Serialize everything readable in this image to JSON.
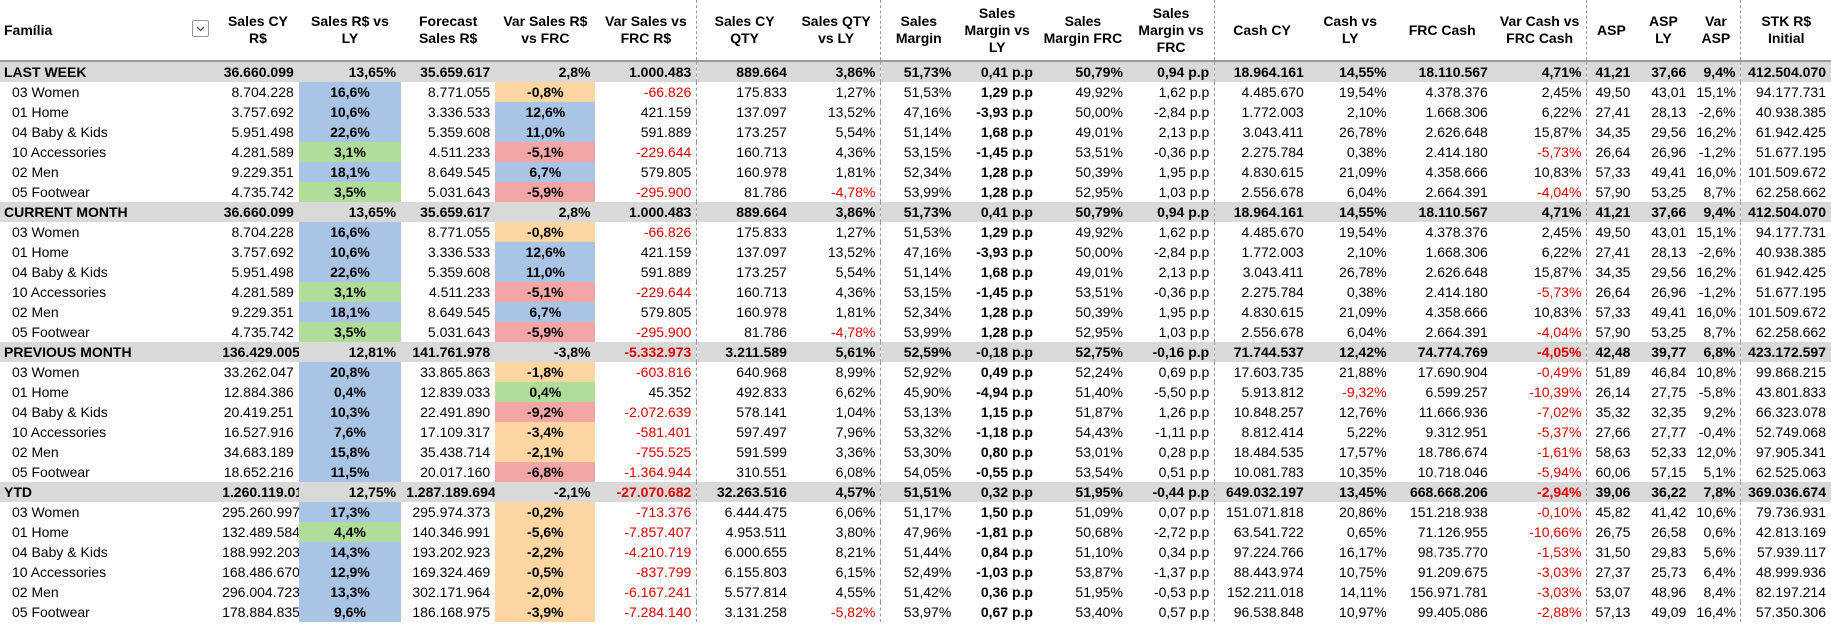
{
  "headers": {
    "family": "Família",
    "sales_cy": "Sales CY R$",
    "sales_vs_ly": "Sales R$ vs LY",
    "forecast": "Forecast Sales R$",
    "var_sales_frc": "Var Sales R$ vs FRC",
    "var_sales_frc_rs": "Var Sales vs FRC R$",
    "sales_cy_qty": "Sales CY QTY",
    "sales_qty_vs_ly": "Sales QTY vs LY",
    "sales_margin": "Sales Margin",
    "sales_margin_vs_ly": "Sales Margin vs LY",
    "sales_margin_frc": "Sales Margin FRC",
    "sales_margin_vs_frc": "Sales Margin vs FRC",
    "cash_cy": "Cash CY",
    "cash_vs_ly": "Cash vs LY",
    "frc_cash": "FRC Cash",
    "var_cash_frc": "Var Cash vs FRC Cash",
    "asp": "ASP",
    "asp_ly": "ASP LY",
    "var_asp": "Var ASP",
    "stk_initial": "STK R$ Initial"
  },
  "colors": {
    "blue": "#a9c4e4",
    "green": "#b0dd9a",
    "orange": "#fdd6a2",
    "red": "#f2a6a6",
    "group_bg": "#d9d9d9",
    "negative_text": "#e00000"
  },
  "filter_icon": "chevron-down-icon",
  "rows": [
    {
      "type": "group",
      "c": [
        "LAST WEEK",
        "36.660.099",
        "13,65%",
        "35.659.617",
        "2,8%",
        "1.000.483",
        "889.664",
        "3,86%",
        "51,73%",
        "0,41 p.p",
        "50,79%",
        "0,94 p.p",
        "18.964.161",
        "14,55%",
        "18.110.567",
        "4,71%",
        "41,21",
        "37,66",
        "9,4%",
        "412.504.070"
      ]
    },
    {
      "type": "sub",
      "c": [
        "03 Women",
        "8.704.228",
        "16,6%",
        "8.771.055",
        "-0,8%",
        "-66.826",
        "175.833",
        "1,27%",
        "51,53%",
        "1,29 p.p",
        "49,92%",
        "1,62 p.p",
        "4.485.670",
        "19,54%",
        "4.378.376",
        "2,45%",
        "49,50",
        "43,01",
        "15,1%",
        "94.177.731"
      ],
      "s": "blue",
      "f": "orange"
    },
    {
      "type": "sub",
      "c": [
        "01 Home",
        "3.757.692",
        "10,6%",
        "3.336.533",
        "12,6%",
        "421.159",
        "137.097",
        "13,52%",
        "47,16%",
        "-3,93 p.p",
        "50,00%",
        "-2,84 p.p",
        "1.772.003",
        "2,10%",
        "1.668.306",
        "6,22%",
        "27,41",
        "28,13",
        "-2,6%",
        "40.938.385"
      ],
      "s": "blue",
      "f": "blue"
    },
    {
      "type": "sub",
      "c": [
        "04 Baby & Kids",
        "5.951.498",
        "22,6%",
        "5.359.608",
        "11,0%",
        "591.889",
        "173.257",
        "5,54%",
        "51,14%",
        "1,68 p.p",
        "49,01%",
        "2,13 p.p",
        "3.043.411",
        "26,78%",
        "2.626.648",
        "15,87%",
        "34,35",
        "29,56",
        "16,2%",
        "61.942.425"
      ],
      "s": "blue",
      "f": "blue"
    },
    {
      "type": "sub",
      "c": [
        "10 Accessories",
        "4.281.589",
        "3,1%",
        "4.511.233",
        "-5,1%",
        "-229.644",
        "160.713",
        "4,36%",
        "53,15%",
        "-1,45 p.p",
        "53,51%",
        "-0,36 p.p",
        "2.275.784",
        "0,38%",
        "2.414.180",
        "-5,73%",
        "26,64",
        "26,96",
        "-1,2%",
        "51.677.195"
      ],
      "s": "green",
      "f": "red"
    },
    {
      "type": "sub",
      "c": [
        "02 Men",
        "9.229.351",
        "18,1%",
        "8.649.545",
        "6,7%",
        "579.805",
        "160.978",
        "1,81%",
        "52,34%",
        "1,28 p.p",
        "50,39%",
        "1,95 p.p",
        "4.830.615",
        "21,09%",
        "4.358.666",
        "10,83%",
        "57,33",
        "49,41",
        "16,0%",
        "101.509.672"
      ],
      "s": "blue",
      "f": "blue"
    },
    {
      "type": "sub",
      "c": [
        "05 Footwear",
        "4.735.742",
        "3,5%",
        "5.031.643",
        "-5,9%",
        "-295.900",
        "81.786",
        "-4,78%",
        "53,99%",
        "1,28 p.p",
        "52,95%",
        "1,03 p.p",
        "2.556.678",
        "6,04%",
        "2.664.391",
        "-4,04%",
        "57,90",
        "53,25",
        "8,7%",
        "62.258.662"
      ],
      "s": "green",
      "f": "red"
    },
    {
      "type": "group",
      "c": [
        "CURRENT MONTH",
        "36.660.099",
        "13,65%",
        "35.659.617",
        "2,8%",
        "1.000.483",
        "889.664",
        "3,86%",
        "51,73%",
        "0,41 p.p",
        "50,79%",
        "0,94 p.p",
        "18.964.161",
        "14,55%",
        "18.110.567",
        "4,71%",
        "41,21",
        "37,66",
        "9,4%",
        "412.504.070"
      ]
    },
    {
      "type": "sub",
      "c": [
        "03 Women",
        "8.704.228",
        "16,6%",
        "8.771.055",
        "-0,8%",
        "-66.826",
        "175.833",
        "1,27%",
        "51,53%",
        "1,29 p.p",
        "49,92%",
        "1,62 p.p",
        "4.485.670",
        "19,54%",
        "4.378.376",
        "2,45%",
        "49,50",
        "43,01",
        "15,1%",
        "94.177.731"
      ],
      "s": "blue",
      "f": "orange"
    },
    {
      "type": "sub",
      "c": [
        "01 Home",
        "3.757.692",
        "10,6%",
        "3.336.533",
        "12,6%",
        "421.159",
        "137.097",
        "13,52%",
        "47,16%",
        "-3,93 p.p",
        "50,00%",
        "-2,84 p.p",
        "1.772.003",
        "2,10%",
        "1.668.306",
        "6,22%",
        "27,41",
        "28,13",
        "-2,6%",
        "40.938.385"
      ],
      "s": "blue",
      "f": "blue"
    },
    {
      "type": "sub",
      "c": [
        "04 Baby & Kids",
        "5.951.498",
        "22,6%",
        "5.359.608",
        "11,0%",
        "591.889",
        "173.257",
        "5,54%",
        "51,14%",
        "1,68 p.p",
        "49,01%",
        "2,13 p.p",
        "3.043.411",
        "26,78%",
        "2.626.648",
        "15,87%",
        "34,35",
        "29,56",
        "16,2%",
        "61.942.425"
      ],
      "s": "blue",
      "f": "blue"
    },
    {
      "type": "sub",
      "c": [
        "10 Accessories",
        "4.281.589",
        "3,1%",
        "4.511.233",
        "-5,1%",
        "-229.644",
        "160.713",
        "4,36%",
        "53,15%",
        "-1,45 p.p",
        "53,51%",
        "-0,36 p.p",
        "2.275.784",
        "0,38%",
        "2.414.180",
        "-5,73%",
        "26,64",
        "26,96",
        "-1,2%",
        "51.677.195"
      ],
      "s": "green",
      "f": "red"
    },
    {
      "type": "sub",
      "c": [
        "02 Men",
        "9.229.351",
        "18,1%",
        "8.649.545",
        "6,7%",
        "579.805",
        "160.978",
        "1,81%",
        "52,34%",
        "1,28 p.p",
        "50,39%",
        "1,95 p.p",
        "4.830.615",
        "21,09%",
        "4.358.666",
        "10,83%",
        "57,33",
        "49,41",
        "16,0%",
        "101.509.672"
      ],
      "s": "blue",
      "f": "blue"
    },
    {
      "type": "sub",
      "c": [
        "05 Footwear",
        "4.735.742",
        "3,5%",
        "5.031.643",
        "-5,9%",
        "-295.900",
        "81.786",
        "-4,78%",
        "53,99%",
        "1,28 p.p",
        "52,95%",
        "1,03 p.p",
        "2.556.678",
        "6,04%",
        "2.664.391",
        "-4,04%",
        "57,90",
        "53,25",
        "8,7%",
        "62.258.662"
      ],
      "s": "green",
      "f": "red"
    },
    {
      "type": "group",
      "c": [
        "PREVIOUS MONTH",
        "136.429.005",
        "12,81%",
        "141.761.978",
        "-3,8%",
        "-5.332.973",
        "3.211.589",
        "5,61%",
        "52,59%",
        "-0,18 p.p",
        "52,75%",
        "-0,16 p.p",
        "71.744.537",
        "12,42%",
        "74.774.769",
        "-4,05%",
        "42,48",
        "39,77",
        "6,8%",
        "423.172.597"
      ]
    },
    {
      "type": "sub",
      "c": [
        "03 Women",
        "33.262.047",
        "20,8%",
        "33.865.863",
        "-1,8%",
        "-603.816",
        "640.968",
        "8,99%",
        "52,92%",
        "0,49 p.p",
        "52,24%",
        "0,69 p.p",
        "17.603.735",
        "21,88%",
        "17.690.904",
        "-0,49%",
        "51,89",
        "46,84",
        "10,8%",
        "99.868.215"
      ],
      "s": "blue",
      "f": "orange"
    },
    {
      "type": "sub",
      "c": [
        "01 Home",
        "12.884.386",
        "0,4%",
        "12.839.033",
        "0,4%",
        "45.352",
        "492.833",
        "6,62%",
        "45,90%",
        "-4,94 p.p",
        "51,40%",
        "-5,50 p.p",
        "5.913.812",
        "-9,32%",
        "6.599.257",
        "-10,39%",
        "26,14",
        "27,75",
        "-5,8%",
        "43.801.833"
      ],
      "s": "blue",
      "f": "green"
    },
    {
      "type": "sub",
      "c": [
        "04 Baby & Kids",
        "20.419.251",
        "10,3%",
        "22.491.890",
        "-9,2%",
        "-2.072.639",
        "578.141",
        "1,04%",
        "53,13%",
        "1,15 p.p",
        "51,87%",
        "1,26 p.p",
        "10.848.257",
        "12,76%",
        "11.666.936",
        "-7,02%",
        "35,32",
        "32,35",
        "9,2%",
        "66.323.078"
      ],
      "s": "blue",
      "f": "red"
    },
    {
      "type": "sub",
      "c": [
        "10 Accessories",
        "16.527.916",
        "7,6%",
        "17.109.317",
        "-3,4%",
        "-581.401",
        "597.497",
        "7,96%",
        "53,32%",
        "-1,18 p.p",
        "54,43%",
        "-1,11 p.p",
        "8.812.414",
        "5,22%",
        "9.312.951",
        "-5,37%",
        "27,66",
        "27,77",
        "-0,4%",
        "52.749.068"
      ],
      "s": "blue",
      "f": "orange"
    },
    {
      "type": "sub",
      "c": [
        "02 Men",
        "34.683.189",
        "15,8%",
        "35.438.714",
        "-2,1%",
        "-755.525",
        "591.599",
        "3,36%",
        "53,30%",
        "0,80 p.p",
        "53,01%",
        "0,28 p.p",
        "18.484.535",
        "17,57%",
        "18.786.674",
        "-1,61%",
        "58,63",
        "52,33",
        "12,0%",
        "97.905.341"
      ],
      "s": "blue",
      "f": "orange"
    },
    {
      "type": "sub",
      "c": [
        "05 Footwear",
        "18.652.216",
        "11,5%",
        "20.017.160",
        "-6,8%",
        "-1.364.944",
        "310.551",
        "6,08%",
        "54,05%",
        "-0,55 p.p",
        "53,54%",
        "0,51 p.p",
        "10.081.783",
        "10,35%",
        "10.718.046",
        "-5,94%",
        "60,06",
        "57,15",
        "5,1%",
        "62.525.063"
      ],
      "s": "blue",
      "f": "red"
    },
    {
      "type": "group",
      "c": [
        "YTD",
        "1.260.119.013",
        "12,75%",
        "1.287.189.694",
        "-2,1%",
        "-27.070.682",
        "32.263.516",
        "4,57%",
        "51,51%",
        "0,32 p.p",
        "51,95%",
        "-0,44 p.p",
        "649.032.197",
        "13,45%",
        "668.668.206",
        "-2,94%",
        "39,06",
        "36,22",
        "7,8%",
        "369.036.674"
      ]
    },
    {
      "type": "sub",
      "c": [
        "03 Women",
        "295.260.997",
        "17,3%",
        "295.974.373",
        "-0,2%",
        "-713.376",
        "6.444.475",
        "6,06%",
        "51,17%",
        "1,50 p.p",
        "51,09%",
        "0,07 p.p",
        "151.071.818",
        "20,86%",
        "151.218.938",
        "-0,10%",
        "45,82",
        "41,42",
        "10,6%",
        "79.736.931"
      ],
      "s": "blue",
      "f": "orange"
    },
    {
      "type": "sub",
      "c": [
        "01 Home",
        "132.489.584",
        "4,4%",
        "140.346.991",
        "-5,6%",
        "-7.857.407",
        "4.953.511",
        "3,80%",
        "47,96%",
        "-1,81 p.p",
        "50,68%",
        "-2,72 p.p",
        "63.541.722",
        "0,65%",
        "71.126.955",
        "-10,66%",
        "26,75",
        "26,58",
        "0,6%",
        "42.813.169"
      ],
      "s": "green",
      "f": "orange"
    },
    {
      "type": "sub",
      "c": [
        "04 Baby & Kids",
        "188.992.203",
        "14,3%",
        "193.202.923",
        "-2,2%",
        "-4.210.719",
        "6.000.655",
        "8,21%",
        "51,44%",
        "0,84 p.p",
        "51,10%",
        "0,34 p.p",
        "97.224.766",
        "16,17%",
        "98.735.770",
        "-1,53%",
        "31,50",
        "29,83",
        "5,6%",
        "57.939.117"
      ],
      "s": "blue",
      "f": "orange"
    },
    {
      "type": "sub",
      "c": [
        "10 Accessories",
        "168.486.670",
        "12,9%",
        "169.324.469",
        "-0,5%",
        "-837.799",
        "6.155.803",
        "6,15%",
        "52,49%",
        "-1,03 p.p",
        "53,87%",
        "-1,37 p.p",
        "88.443.974",
        "10,75%",
        "91.209.675",
        "-3,03%",
        "27,37",
        "25,73",
        "6,4%",
        "48.999.936"
      ],
      "s": "blue",
      "f": "orange"
    },
    {
      "type": "sub",
      "c": [
        "02 Men",
        "296.004.723",
        "13,3%",
        "302.171.964",
        "-2,0%",
        "-6.167.241",
        "5.577.814",
        "4,55%",
        "51,42%",
        "0,36 p.p",
        "51,95%",
        "-0,53 p.p",
        "152.211.018",
        "14,11%",
        "156.971.781",
        "-3,03%",
        "53,07",
        "48,96",
        "8,4%",
        "82.197.214"
      ],
      "s": "blue",
      "f": "orange"
    },
    {
      "type": "sub",
      "c": [
        "05 Footwear",
        "178.884.835",
        "9,6%",
        "186.168.975",
        "-3,9%",
        "-7.284.140",
        "3.131.258",
        "-5,82%",
        "53,97%",
        "0,67 p.p",
        "53,40%",
        "0,57 p.p",
        "96.538.848",
        "10,97%",
        "99.405.086",
        "-2,88%",
        "57,13",
        "49,09",
        "16,4%",
        "57.350.306"
      ],
      "s": "blue",
      "f": "orange"
    }
  ]
}
